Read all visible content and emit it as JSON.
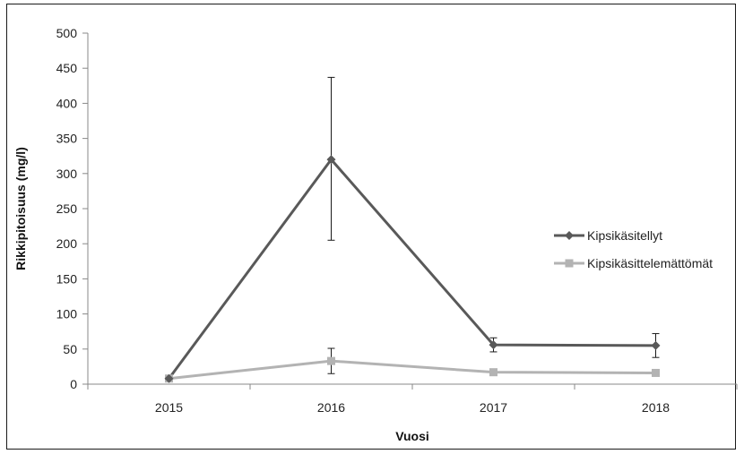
{
  "chart_data": {
    "type": "line",
    "title": "",
    "xlabel": "Vuosi",
    "ylabel": "Rikkipitoisuus  (mg/l)",
    "categories": [
      "2015",
      "2016",
      "2017",
      "2018"
    ],
    "ylim": [
      0,
      500
    ],
    "yticks": [
      0,
      50,
      100,
      150,
      200,
      250,
      300,
      350,
      400,
      450,
      500
    ],
    "grid": false,
    "legend_position": "right",
    "series": [
      {
        "name": "Kipsikäsitellyt",
        "color": "#595959",
        "marker": "diamond",
        "values": [
          8,
          320,
          56,
          55
        ],
        "error_low": [
          8,
          205,
          46,
          38
        ],
        "error_high": [
          8,
          437,
          66,
          72
        ]
      },
      {
        "name": "Kipsikäsittelemättömät",
        "color": "#b3b3b3",
        "marker": "square",
        "values": [
          8,
          33,
          17,
          16
        ],
        "error_low": [
          8,
          15,
          17,
          16
        ],
        "error_high": [
          8,
          51,
          17,
          16
        ]
      }
    ]
  }
}
